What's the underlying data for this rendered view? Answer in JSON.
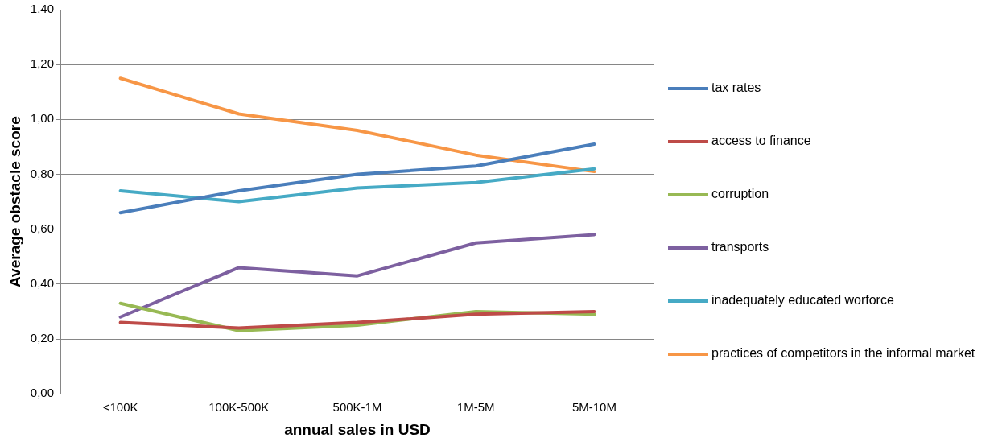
{
  "chart_data": {
    "type": "line",
    "xlabel": "annual sales in USD",
    "ylabel": "Average obstacle score",
    "categories": [
      "<100K",
      "100K-500K",
      "500K-1M",
      "1M-5M",
      "5M-10M"
    ],
    "series": [
      {
        "name": "tax rates",
        "color": "#4a7ebb",
        "values": [
          0.66,
          0.74,
          0.8,
          0.83,
          0.91
        ]
      },
      {
        "name": "access to finance",
        "color": "#be4b48",
        "values": [
          0.26,
          0.24,
          0.26,
          0.29,
          0.3
        ]
      },
      {
        "name": "corruption",
        "color": "#98b954",
        "values": [
          0.33,
          0.23,
          0.25,
          0.3,
          0.29
        ]
      },
      {
        "name": "transports",
        "color": "#7d60a0",
        "values": [
          0.28,
          0.46,
          0.43,
          0.55,
          0.58
        ]
      },
      {
        "name": "inadequately educated worforce",
        "color": "#46aac5",
        "values": [
          0.74,
          0.7,
          0.75,
          0.77,
          0.82
        ]
      },
      {
        "name": "practices of competitors in the informal market",
        "color": "#f79646",
        "values": [
          1.15,
          1.02,
          0.96,
          0.87,
          0.81
        ]
      }
    ],
    "ylim": [
      0,
      1.4
    ],
    "yticks": [
      {
        "value": 0,
        "label": "0,00"
      },
      {
        "value": 0.2,
        "label": "0,20"
      },
      {
        "value": 0.4,
        "label": "0,40"
      },
      {
        "value": 0.6,
        "label": "0,60"
      },
      {
        "value": 0.8,
        "label": "0,80"
      },
      {
        "value": 1.0,
        "label": "1,00"
      },
      {
        "value": 1.2,
        "label": "1,20"
      },
      {
        "value": 1.4,
        "label": "1,40"
      }
    ],
    "grid": "y",
    "legend": "right",
    "marker": "none",
    "line_style": "solid"
  }
}
